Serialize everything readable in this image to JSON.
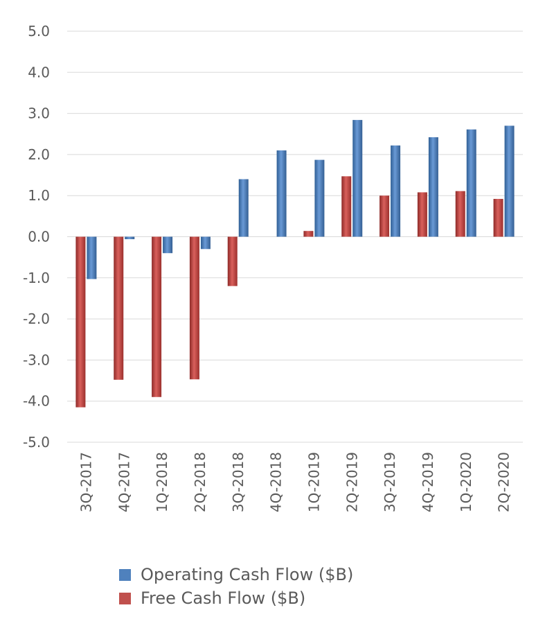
{
  "chart_data": {
    "type": "bar",
    "categories": [
      "3Q-2017",
      "4Q-2017",
      "1Q-2018",
      "2Q-2018",
      "3Q-2018",
      "4Q-2018",
      "1Q-2019",
      "2Q-2019",
      "3Q-2019",
      "4Q-2019",
      "1Q-2020",
      "2Q-2020"
    ],
    "series": [
      {
        "name": "Free Cash Flow ($B)",
        "color": "#c0504d",
        "values": [
          -4.15,
          -3.48,
          -3.9,
          -3.47,
          -1.2,
          0.0,
          0.14,
          1.47,
          1.0,
          1.08,
          1.11,
          0.92
        ]
      },
      {
        "name": "Operating Cash Flow ($B)",
        "color": "#4f81bd",
        "values": [
          -1.03,
          -0.06,
          -0.4,
          -0.3,
          1.4,
          2.1,
          1.87,
          2.84,
          2.22,
          2.42,
          2.61,
          2.7
        ]
      }
    ],
    "y_ticks": [
      "5.0",
      "4.0",
      "3.0",
      "2.0",
      "1.0",
      "0.0",
      "-1.0",
      "-2.0",
      "-3.0",
      "-4.0",
      "-5.0"
    ],
    "ylim": [
      -5,
      5
    ],
    "grid": true,
    "legend_position": "bottom",
    "title": "",
    "xlabel": "",
    "ylabel": ""
  }
}
